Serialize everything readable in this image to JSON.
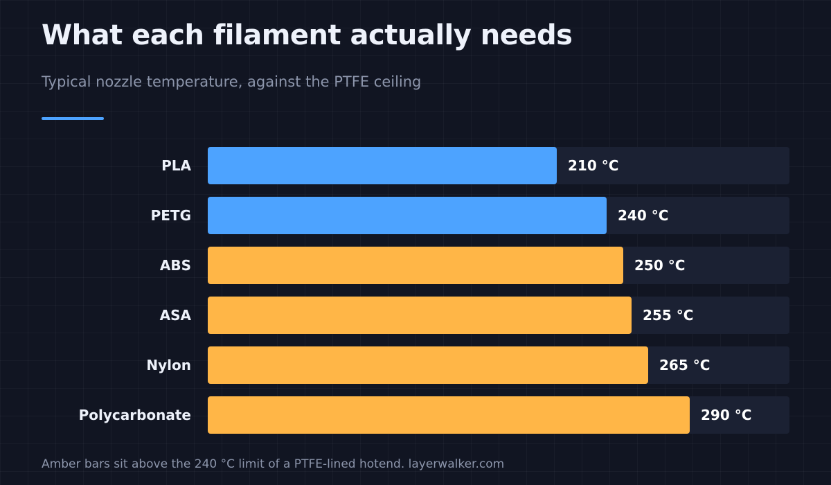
{
  "header": {
    "title": "What each filament actually needs",
    "subtitle": "Typical nozzle temperature, against the PTFE ceiling"
  },
  "footer": {
    "note": "Amber bars sit above the 240 °C limit of a PTFE-lined hotend. layerwalker.com"
  },
  "colors": {
    "within_limit": "#4da3ff",
    "above_limit": "#ffb647",
    "track": "#1b2133",
    "accent": "#4da3ff",
    "background": "#111522"
  },
  "chart_data": {
    "type": "bar",
    "orientation": "horizontal",
    "categories": [
      "PLA",
      "PETG",
      "ABS",
      "ASA",
      "Nylon",
      "Polycarbonate"
    ],
    "values": [
      210,
      240,
      250,
      255,
      265,
      290
    ],
    "value_labels": [
      "210 °C",
      "240 °C",
      "250 °C",
      "255 °C",
      "265 °C",
      "290 °C"
    ],
    "unit": "°C",
    "threshold": 240,
    "xlim": [
      0,
      350
    ],
    "grid": false,
    "legend": "none"
  }
}
